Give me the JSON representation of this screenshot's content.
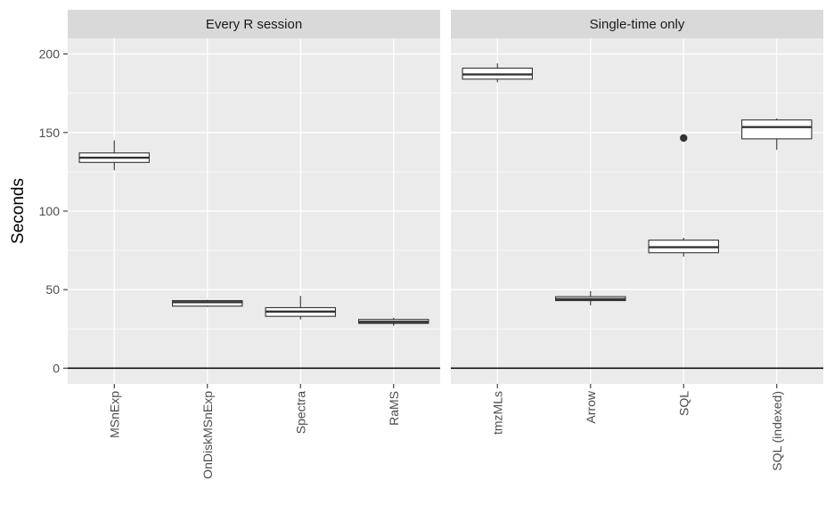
{
  "chart_data": {
    "type": "box",
    "ylabel": "Seconds",
    "ylim": [
      -10,
      210
    ],
    "yticks": [
      0,
      50,
      100,
      150,
      200
    ],
    "reference_line_y": 0,
    "grid": true,
    "colors": {
      "panel_bg": "#ebebeb",
      "strip_bg": "#d9d9d9",
      "grid": "#ffffff",
      "box_fill": "#ffffff",
      "box_line": "#333333",
      "ref_line": "#000000"
    },
    "panels": [
      {
        "title": "Every R session",
        "categories": [
          "MSnExp",
          "OnDiskMSnExp",
          "Spectra",
          "RaMS"
        ],
        "boxes": [
          {
            "category": "MSnExp",
            "min": 126,
            "q1": 131,
            "median": 134,
            "q3": 137,
            "max": 145,
            "outliers": []
          },
          {
            "category": "OnDiskMSnExp",
            "min": 39,
            "q1": 39.5,
            "median": 42,
            "q3": 43,
            "max": 43.5,
            "outliers": []
          },
          {
            "category": "Spectra",
            "min": 31,
            "q1": 33,
            "median": 36,
            "q3": 38.5,
            "max": 46,
            "outliers": []
          },
          {
            "category": "RaMS",
            "min": 27,
            "q1": 28.5,
            "median": 29.5,
            "q3": 31,
            "max": 32,
            "outliers": []
          }
        ]
      },
      {
        "title": "Single-time only",
        "categories": [
          "tmzMLs",
          "Arrow",
          "SQL",
          "SQL (indexed)"
        ],
        "boxes": [
          {
            "category": "tmzMLs",
            "min": 182,
            "q1": 184,
            "median": 187,
            "q3": 191,
            "max": 194,
            "outliers": []
          },
          {
            "category": "Arrow",
            "min": 40,
            "q1": 43,
            "median": 44,
            "q3": 45.5,
            "max": 49,
            "outliers": []
          },
          {
            "category": "SQL",
            "min": 71,
            "q1": 73.5,
            "median": 77,
            "q3": 81.5,
            "max": 83,
            "outliers": [
              146.5
            ]
          },
          {
            "category": "SQL (indexed)",
            "min": 139,
            "q1": 146,
            "median": 153.5,
            "q3": 158,
            "max": 159,
            "outliers": []
          }
        ]
      }
    ]
  }
}
